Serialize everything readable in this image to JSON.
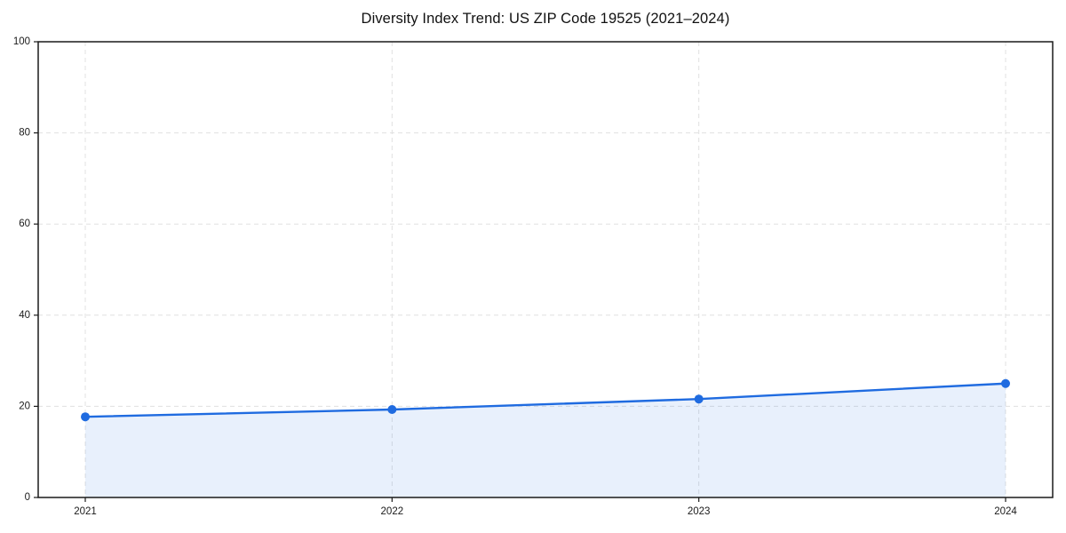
{
  "chart_data": {
    "type": "line",
    "title": "Diversity Index Trend: US ZIP Code 19525 (2021–2024)",
    "x": [
      "2021",
      "2022",
      "2023",
      "2024"
    ],
    "series": [
      {
        "name": "Diversity Index",
        "values": [
          17.7,
          19.3,
          21.6,
          25.0
        ]
      }
    ],
    "xlabel": "",
    "ylabel": "",
    "ylim": [
      0,
      100
    ],
    "yticks": [
      0,
      20,
      40,
      60,
      80,
      100
    ],
    "grid": "dashed",
    "legend_position": "none",
    "area_fill_under_line": true,
    "colors": {
      "line": "#1f6be0",
      "marker": "#1f6be0",
      "area_fill": "rgba(34,110,226,0.10)",
      "grid": "#e0e0e0",
      "axis": "#1a1a1a",
      "tick_text": "#1a1a1a",
      "title_text": "#111111",
      "background": "#ffffff"
    }
  }
}
